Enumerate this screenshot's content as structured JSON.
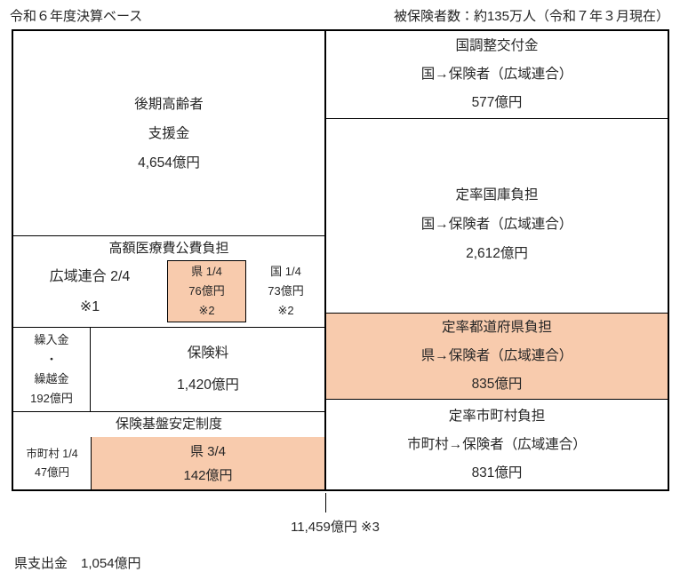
{
  "header": {
    "fiscal_year_note": "令和６年度決算ベース",
    "insured_count_note": "被保険者数：約135万人（令和７年３月現在）"
  },
  "boxes": {
    "support_fund": {
      "lines": [
        "後期高齢者",
        "支援金",
        "4,654億円"
      ]
    },
    "high_cost_medical": {
      "title": "高額医療費公費負担",
      "union_share": [
        "広域連合 2/4",
        "※1"
      ],
      "pref_share": [
        "県 1/4",
        "76億円",
        "※2"
      ],
      "national_share": [
        "国 1/4",
        "73億円",
        "※2"
      ]
    },
    "carryover": {
      "lines": [
        "繰入金",
        "・",
        "繰越金",
        "192億円"
      ]
    },
    "premiums": {
      "lines": [
        "保険料",
        "1,420億円"
      ]
    },
    "base_stabilization": {
      "title": "保険基盤安定制度",
      "municipal_share": [
        "市町村 1/4",
        "47億円"
      ],
      "pref_share": [
        "県 3/4",
        "142億円"
      ]
    },
    "national_adjustment_grant": {
      "lines": [
        "国調整交付金",
        "国→保険者（広域連合）",
        "577億円"
      ]
    },
    "national_treasury": {
      "lines": [
        "定率国庫負担",
        "国→保険者（広域連合）",
        "2,612億円"
      ]
    },
    "prefectural_burden": {
      "lines": [
        "定率都道府県負担",
        "県→保険者（広域連合）",
        "835億円"
      ]
    },
    "municipal_burden": {
      "lines": [
        "定率市町村負担",
        "市町村→保険者（広域連合）",
        "831億円"
      ]
    }
  },
  "footer": {
    "total": "11,459億円 ※3",
    "prefecture_expenditure": "県支出金　1,054億円"
  },
  "colors": {
    "highlight": "#F8CBAD",
    "line": "#000000",
    "text": "#262626"
  }
}
